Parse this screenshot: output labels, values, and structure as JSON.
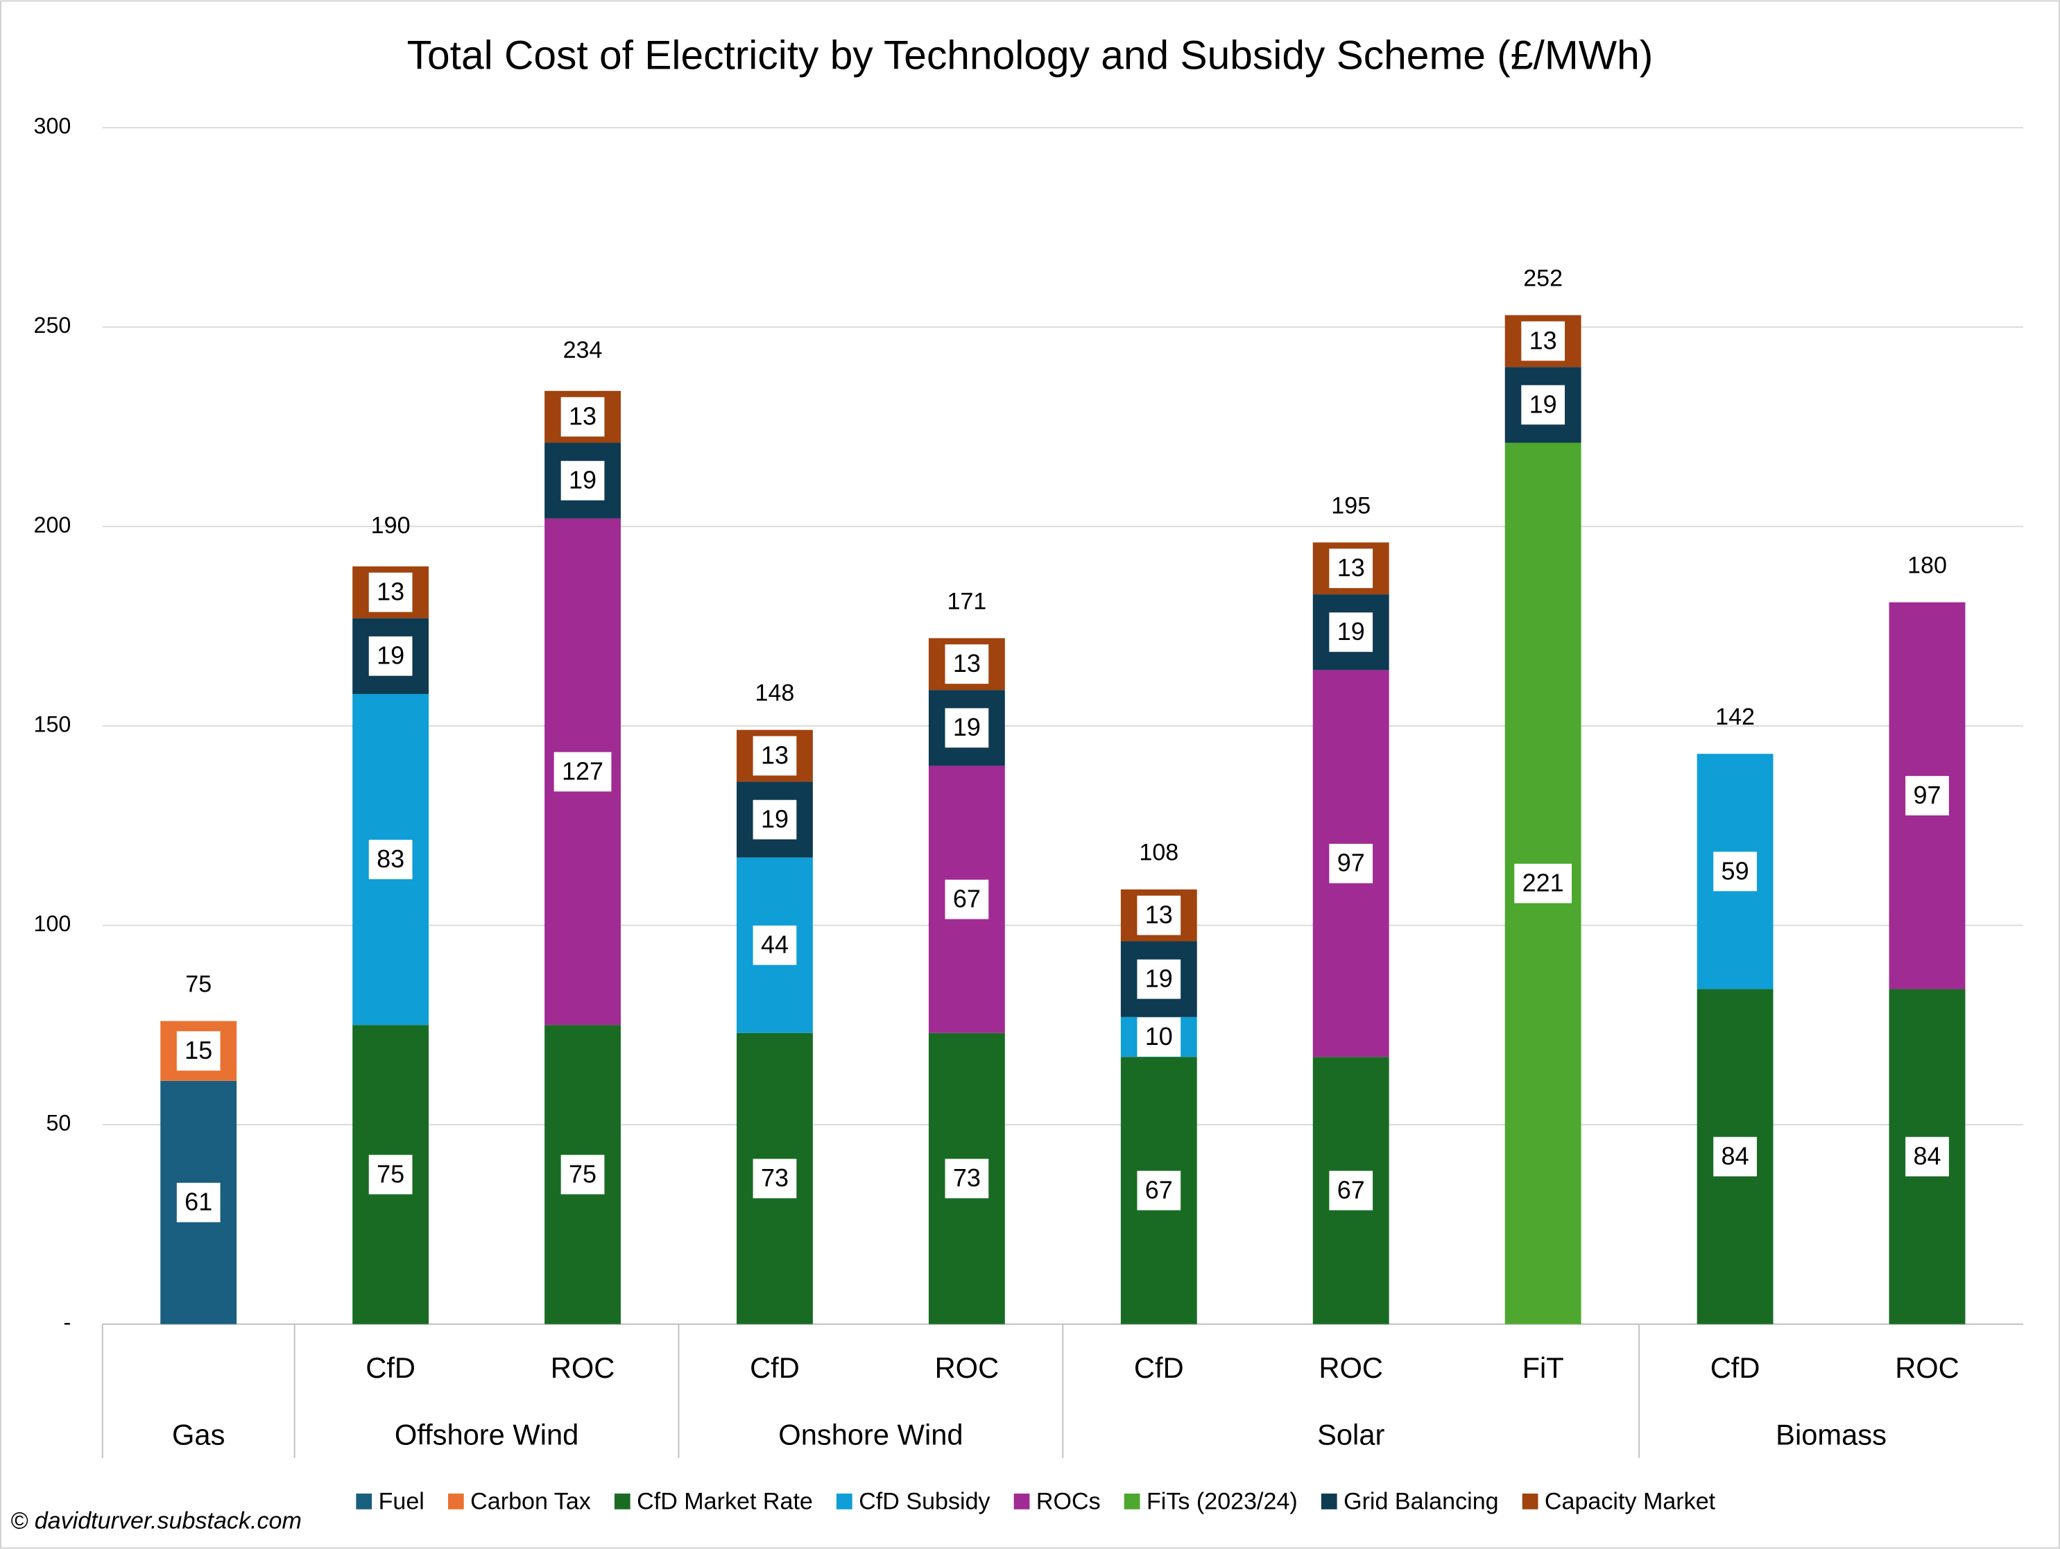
{
  "chart_data": {
    "type": "stacked-bar",
    "title": "Total Cost of Electricity by Technology and Subsidy Scheme (£/MWh)",
    "groups": [
      {
        "name": "Gas",
        "categories": [
          null
        ]
      },
      {
        "name": "Offshore Wind",
        "categories": [
          "CfD",
          "ROC"
        ]
      },
      {
        "name": "Onshore Wind",
        "categories": [
          "CfD",
          "ROC"
        ]
      },
      {
        "name": "Solar",
        "categories": [
          "CfD",
          "ROC",
          "FiT"
        ]
      },
      {
        "name": "Biomass",
        "categories": [
          "CfD",
          "ROC"
        ]
      }
    ],
    "series": [
      {
        "name": "Fuel",
        "color": "#1a5e80",
        "values": [
          61,
          null,
          null,
          null,
          null,
          null,
          null,
          null,
          null,
          null
        ]
      },
      {
        "name": "Carbon Tax",
        "color": "#e97132",
        "values": [
          15,
          null,
          null,
          null,
          null,
          null,
          null,
          null,
          null,
          null
        ]
      },
      {
        "name": "CfD Market Rate",
        "color": "#196b24",
        "values": [
          null,
          75,
          75,
          73,
          73,
          67,
          67,
          null,
          84,
          84
        ]
      },
      {
        "name": "CfD Subsidy",
        "color": "#0f9ed5",
        "values": [
          null,
          83,
          null,
          44,
          null,
          10,
          null,
          null,
          59,
          null
        ]
      },
      {
        "name": "ROCs",
        "color": "#a02b93",
        "values": [
          null,
          null,
          127,
          null,
          67,
          null,
          97,
          null,
          null,
          97
        ]
      },
      {
        "name": "FiTs (2023/24)",
        "color": "#4ea72e",
        "values": [
          null,
          null,
          null,
          null,
          null,
          null,
          null,
          221,
          null,
          null
        ]
      },
      {
        "name": "Grid Balancing",
        "color": "#0e3a52",
        "values": [
          null,
          19,
          19,
          19,
          19,
          19,
          19,
          19,
          null,
          null
        ]
      },
      {
        "name": "Capacity Market",
        "color": "#a0430e",
        "values": [
          null,
          13,
          13,
          13,
          13,
          13,
          13,
          13,
          null,
          null
        ]
      }
    ],
    "totals": [
      75,
      190,
      234,
      148,
      171,
      108,
      195,
      252,
      142,
      180
    ],
    "ylim": [
      0,
      300
    ],
    "yticks": [
      {
        "value": 0,
        "label": "-"
      },
      50,
      100,
      150,
      200,
      250,
      300
    ],
    "grid": true,
    "legend": "bottom",
    "footnote": "© davidturver.substack.com"
  }
}
